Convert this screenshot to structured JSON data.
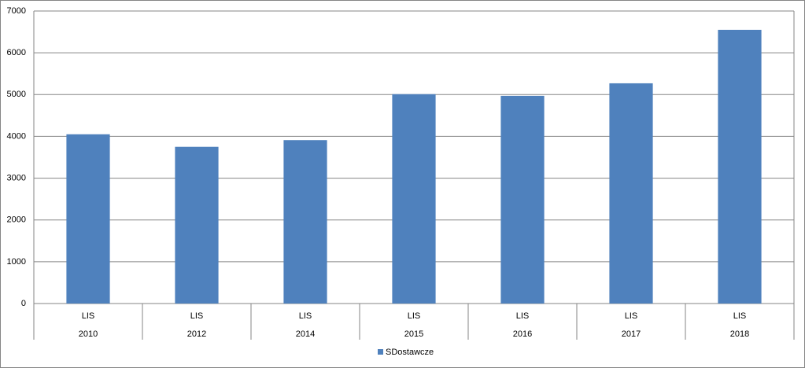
{
  "chart_data": {
    "type": "bar",
    "categories": [
      [
        "LIS",
        "2010"
      ],
      [
        "LIS",
        "2012"
      ],
      [
        "LIS",
        "2014"
      ],
      [
        "LIS",
        "2015"
      ],
      [
        "LIS",
        "2016"
      ],
      [
        "LIS",
        "2017"
      ],
      [
        "LIS",
        "2018"
      ]
    ],
    "series": [
      {
        "name": "SDostawcze",
        "color": "#4f81bd",
        "values": [
          4050,
          3750,
          3910,
          5010,
          4970,
          5270,
          6550
        ]
      }
    ],
    "ylim": [
      0,
      7000
    ],
    "yticks": [
      0,
      1000,
      2000,
      3000,
      4000,
      5000,
      6000,
      7000
    ],
    "grid": true,
    "legend": "bottom"
  }
}
